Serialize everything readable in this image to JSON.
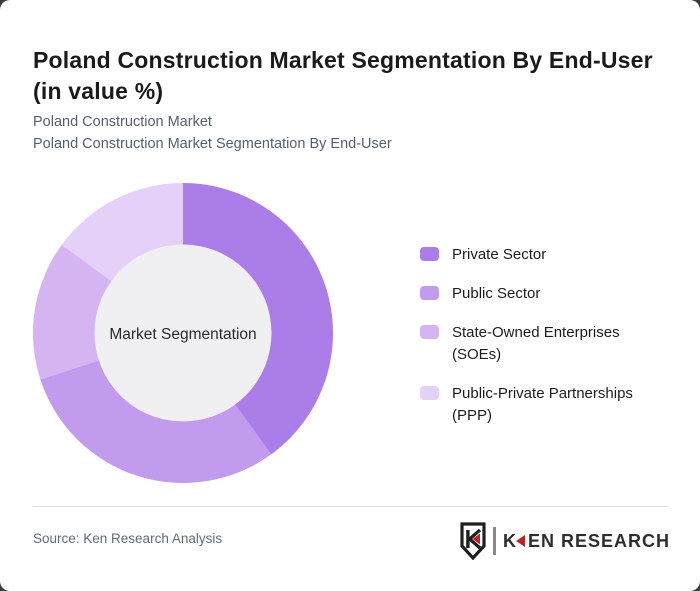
{
  "header": {
    "title": "Poland Construction Market Segmentation By End-User (in value %)",
    "subtitle_line1": "Poland Construction Market",
    "subtitle_line2": "Poland Construction Market Segmentation By End-User"
  },
  "chart_data": {
    "type": "pie",
    "subtype": "donut",
    "title": "Poland Construction Market Segmentation By End-User (in value %)",
    "center_label": "Market Segmentation",
    "categories": [
      "Private Sector",
      "Public Sector",
      "State-Owned Enterprises (SOEs)",
      "Public-Private Partnerships (PPP)"
    ],
    "values": [
      40,
      30,
      15,
      15
    ],
    "unit": "percent_of_value",
    "colors": [
      "#ab7de8",
      "#c29aee",
      "#d6b4f2",
      "#e5d1f8"
    ],
    "start_angle_deg": 0,
    "direction": "clockwise",
    "legend_position": "right",
    "center_fill": "#f0eff1"
  },
  "legend": {
    "items": [
      {
        "line1": "Private Sector",
        "line2": "",
        "color": "#ab7de8"
      },
      {
        "line1": "Public Sector",
        "line2": "",
        "color": "#c29aee"
      },
      {
        "line1": "State-Owned Enterprises",
        "line2": "(SOEs)",
        "color": "#d6b4f2"
      },
      {
        "line1": "Public-Private Partnerships",
        "line2": "(PPP)",
        "color": "#e5d1f8"
      }
    ]
  },
  "footer": {
    "source": "Source: Ken Research Analysis",
    "logo": {
      "shield_letter": "K",
      "wordmark_k": "K",
      "wordmark_rest": "EN RESEARCH",
      "accent_color": "#c42127"
    }
  }
}
